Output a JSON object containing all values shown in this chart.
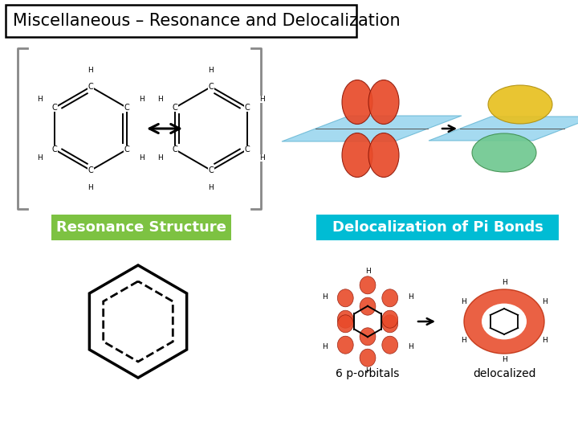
{
  "title": "Miscellaneous – Resonance and Delocalization",
  "title_fontsize": 15,
  "title_box_color": "white",
  "title_box_edgecolor": "black",
  "background_color": "white",
  "label1": "Resonance Structure",
  "label1_bg": "#7dc242",
  "label1_fontsize": 13,
  "label2": "Delocalization of Pi Bonds",
  "label2_bg": "#00bcd4",
  "label2_fontsize": 13,
  "label3": "6 p-orbitals",
  "label3_fontsize": 10,
  "label4": "delocalized",
  "label4_fontsize": 10,
  "text_color": "black",
  "bracket_color": "#888888",
  "orbital_color": "#e84b2a",
  "orbital_edge": "#c03010",
  "plane_color": "#87ceeb",
  "gold_color": "#e8c020",
  "teal_color": "#70c890"
}
